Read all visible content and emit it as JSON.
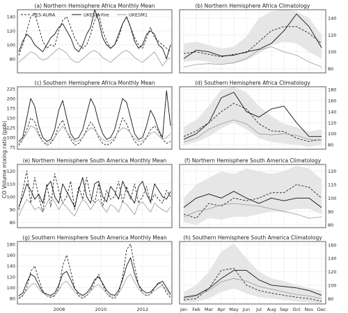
{
  "figure": {
    "ylabel": "CO Volume mixing ratio (ppb)",
    "legend": [
      {
        "label": "TES-AURA",
        "style": "dashed",
        "color": "#222222"
      },
      {
        "label": "UKESM-Fire",
        "style": "solid",
        "color": "#111111"
      },
      {
        "label": "UKESM1",
        "style": "solid",
        "color": "#999999"
      }
    ],
    "colors": {
      "tes": "#222222",
      "fire": "#111111",
      "ukesm1": "#999999",
      "band": "#e6e6e6",
      "grid": "#e8e8e8"
    }
  },
  "chart_data": [
    {
      "type": "line",
      "title": "(a) Northern Hemisphere Africa Monthly Mean",
      "x_labels": [
        "2008",
        "2010",
        "2012"
      ],
      "y_ticks": [
        80,
        100,
        120,
        140
      ],
      "ylim": [
        60,
        150
      ],
      "grid": true,
      "legend_placement": "top",
      "series": [
        {
          "name": "TES-AURA",
          "values": [
            85,
            100,
            120,
            140,
            145,
            125,
            105,
            95,
            100,
            98,
            120,
            135,
            140,
            125,
            110,
            100,
            95,
            100,
            115,
            135,
            145,
            120,
            105,
            95,
            100,
            110,
            130,
            140,
            125,
            110,
            100,
            95,
            110,
            125,
            110,
            105,
            100,
            95,
            90
          ]
        },
        {
          "name": "UKESM-Fire",
          "values": [
            90,
            105,
            115,
            110,
            100,
            95,
            90,
            100,
            110,
            115,
            125,
            130,
            120,
            110,
            95,
            90,
            100,
            115,
            125,
            150,
            135,
            110,
            100,
            95,
            100,
            115,
            130,
            140,
            125,
            105,
            95,
            100,
            115,
            120,
            115,
            100,
            95,
            80,
            100
          ]
        },
        {
          "name": "UKESM1",
          "values": [
            75,
            80,
            85,
            90,
            88,
            82,
            78,
            80,
            85,
            90,
            95,
            92,
            88,
            80,
            76,
            75,
            80,
            85,
            90,
            92,
            88,
            82,
            78,
            75,
            80,
            85,
            90,
            92,
            88,
            82,
            78,
            75,
            80,
            85,
            90,
            80,
            70,
            78,
            82
          ]
        }
      ]
    },
    {
      "type": "line",
      "title": "(b) Northern Hemisphere Africa Climatology",
      "x_labels": [
        "Jan",
        "Feb",
        "Mar",
        "Apr",
        "May",
        "Jun",
        "Jul",
        "Aug",
        "Sep",
        "Oct",
        "Nov",
        "Dec"
      ],
      "y_ticks": [
        80,
        100,
        120,
        140
      ],
      "ylim": [
        75,
        150
      ],
      "grid": true,
      "series": [
        {
          "name": "TES-AURA",
          "values": [
            98,
            100,
            97,
            94,
            97,
            99,
            112,
            125,
            130,
            130,
            122,
            110
          ]
        },
        {
          "name": "UKESM-Fire",
          "values": [
            92,
            102,
            100,
            95,
            96,
            100,
            103,
            110,
            125,
            145,
            130,
            105
          ]
        },
        {
          "name": "UKESM1",
          "values": [
            82,
            85,
            86,
            85,
            87,
            92,
            102,
            106,
            100,
            96,
            88,
            82
          ]
        }
      ],
      "band": {
        "lower": [
          88,
          90,
          88,
          85,
          86,
          90,
          98,
          108,
          112,
          110,
          100,
          92
        ],
        "upper": [
          110,
          112,
          108,
          104,
          106,
          118,
          140,
          148,
          150,
          148,
          140,
          120
        ]
      }
    },
    {
      "type": "line",
      "title": "(c) Southern Hemisphere Africa Monthly Mean",
      "x_labels": [
        "2008",
        "2010",
        "2012"
      ],
      "y_ticks": [
        75,
        100,
        125,
        150,
        175,
        200,
        225
      ],
      "ylim": [
        70,
        230
      ],
      "grid": true,
      "series": [
        {
          "name": "TES-AURA",
          "values": [
            80,
            95,
            120,
            150,
            140,
            110,
            90,
            80,
            85,
            100,
            130,
            145,
            115,
            95,
            80,
            85,
            100,
            120,
            140,
            125,
            100,
            85,
            80,
            85,
            95,
            120,
            150,
            135,
            110,
            90,
            80,
            85,
            100,
            120,
            130,
            115,
            95,
            85,
            90
          ]
        },
        {
          "name": "UKESM-Fire",
          "values": [
            90,
            100,
            150,
            200,
            180,
            130,
            100,
            90,
            95,
            120,
            170,
            195,
            150,
            110,
            95,
            100,
            120,
            160,
            200,
            180,
            140,
            110,
            95,
            100,
            120,
            160,
            200,
            190,
            150,
            110,
            95,
            100,
            130,
            170,
            150,
            120,
            100,
            220,
            130
          ]
        },
        {
          "name": "UKESM1",
          "values": [
            85,
            95,
            110,
            130,
            125,
            105,
            90,
            85,
            90,
            100,
            115,
            130,
            115,
            100,
            90,
            92,
            100,
            115,
            125,
            120,
            105,
            95,
            90,
            92,
            100,
            115,
            125,
            122,
            110,
            98,
            90,
            92,
            100,
            110,
            115,
            105,
            95,
            100,
            110
          ]
        }
      ]
    },
    {
      "type": "line",
      "title": "(d) Southern Hemisphere Africa Climatology",
      "x_labels": [
        "Jan",
        "Feb",
        "Mar",
        "Apr",
        "May",
        "Jun",
        "Jul",
        "Aug",
        "Sep",
        "Oct",
        "Nov",
        "Dec"
      ],
      "y_ticks": [
        80,
        100,
        120,
        140,
        160,
        180
      ],
      "ylim": [
        72,
        185
      ],
      "grid": true,
      "series": [
        {
          "name": "TES-AURA",
          "values": [
            95,
            105,
            120,
            140,
            155,
            145,
            118,
            105,
            104,
            92,
            86,
            90
          ]
        },
        {
          "name": "UKESM-Fire",
          "values": [
            90,
            100,
            120,
            165,
            175,
            140,
            130,
            145,
            150,
            120,
            95,
            95
          ]
        },
        {
          "name": "UKESM1",
          "values": [
            85,
            92,
            108,
            118,
            125,
            118,
            100,
            98,
            100,
            97,
            90,
            88
          ]
        }
      ],
      "band": {
        "lower": [
          80,
          85,
          95,
          110,
          120,
          108,
          92,
          85,
          82,
          80,
          76,
          80
        ],
        "upper": [
          112,
          125,
          150,
          180,
          185,
          175,
          150,
          132,
          118,
          112,
          104,
          108
        ]
      }
    },
    {
      "type": "line",
      "title": "(e) Northern Hemisphere South America Monthly Mean",
      "x_labels": [
        "2008",
        "2010",
        "2012"
      ],
      "y_ticks": [
        80,
        90,
        100,
        110,
        120
      ],
      "ylim": [
        76,
        125
      ],
      "grid": true,
      "series": [
        {
          "name": "TES-AURA",
          "values": [
            90,
            105,
            120,
            95,
            115,
            100,
            88,
            110,
            92,
            118,
            105,
            95,
            100,
            112,
            90,
            108,
            98,
            115,
            100,
            95,
            110,
            92,
            105,
            98,
            100,
            112,
            95,
            108,
            98,
            110,
            95,
            100,
            108,
            95,
            102,
            98,
            95,
            105,
            100
          ]
        },
        {
          "name": "UKESM-Fire",
          "values": [
            92,
            100,
            110,
            105,
            98,
            102,
            95,
            108,
            112,
            100,
            95,
            110,
            104,
            98,
            92,
            105,
            115,
            100,
            95,
            110,
            112,
            100,
            96,
            108,
            104,
            98,
            112,
            105,
            100,
            95,
            108,
            112,
            102,
            96,
            110,
            105,
            100,
            98,
            104
          ]
        },
        {
          "name": "UKESM1",
          "values": [
            85,
            92,
            98,
            95,
            90,
            92,
            88,
            95,
            100,
            96,
            90,
            95,
            92,
            88,
            85,
            92,
            98,
            95,
            90,
            95,
            98,
            92,
            88,
            94,
            92,
            88,
            96,
            94,
            90,
            86,
            94,
            96,
            92,
            88,
            95,
            92,
            90,
            88,
            92
          ]
        }
      ]
    },
    {
      "type": "line",
      "title": "(f) Northern Hemisphere South America Climatology",
      "x_labels": [
        "Jan",
        "Feb",
        "Mar",
        "Apr",
        "May",
        "Jun",
        "Jul",
        "Aug",
        "Sep",
        "Oct",
        "Nov",
        "Dec"
      ],
      "y_ticks": [
        80,
        90,
        100,
        110,
        120
      ],
      "ylim": [
        78,
        125
      ],
      "grid": true,
      "series": [
        {
          "name": "TES-AURA",
          "values": [
            88,
            85,
            96,
            94,
            100,
            98,
            100,
            104,
            104,
            110,
            108,
            100
          ]
        },
        {
          "name": "UKESM-Fire",
          "values": [
            93,
            100,
            103,
            100,
            105,
            100,
            96,
            100,
            98,
            100,
            100,
            93
          ]
        },
        {
          "name": "UKESM1",
          "values": [
            86,
            90,
            92,
            95,
            96,
            95,
            94,
            92,
            90,
            88,
            85,
            86
          ]
        }
      ],
      "band": {
        "lower": [
          82,
          80,
          85,
          84,
          86,
          86,
          88,
          90,
          90,
          92,
          92,
          88
        ],
        "upper": [
          100,
          110,
          115,
          120,
          118,
          122,
          120,
          118,
          120,
          124,
          122,
          114
        ]
      }
    },
    {
      "type": "line",
      "title": "(g) Southern Hemisphere South America Monthly Mean",
      "x_labels": [
        "2008",
        "2010",
        "2012"
      ],
      "y_ticks": [
        80,
        100,
        120,
        140,
        160,
        180
      ],
      "ylim": [
        70,
        185
      ],
      "grid": true,
      "series": [
        {
          "name": "TES-AURA",
          "values": [
            80,
            85,
            100,
            130,
            140,
            115,
            95,
            85,
            82,
            85,
            100,
            140,
            160,
            130,
            100,
            85,
            80,
            85,
            95,
            110,
            125,
            105,
            90,
            82,
            80,
            90,
            120,
            170,
            180,
            140,
            105,
            90,
            85,
            88,
            100,
            110,
            105,
            90,
            82
          ]
        },
        {
          "name": "UKESM-Fire",
          "values": [
            85,
            90,
            110,
            125,
            120,
            105,
            92,
            88,
            86,
            90,
            105,
            125,
            130,
            115,
            98,
            90,
            86,
            90,
            100,
            115,
            120,
            108,
            95,
            88,
            86,
            95,
            115,
            140,
            155,
            125,
            105,
            95,
            90,
            92,
            100,
            108,
            112,
            100,
            88
          ]
        },
        {
          "name": "UKESM1",
          "values": [
            82,
            86,
            95,
            105,
            108,
            98,
            90,
            85,
            84,
            86,
            95,
            108,
            112,
            102,
            92,
            86,
            84,
            86,
            94,
            102,
            106,
            98,
            90,
            85,
            84,
            90,
            102,
            118,
            125,
            110,
            98,
            90,
            86,
            88,
            95,
            100,
            104,
            96,
            86
          ]
        }
      ]
    },
    {
      "type": "line",
      "title": "(h) Southern Hemisphere South America Climatology",
      "x_labels": [
        "Jan",
        "Feb",
        "Mar",
        "Apr",
        "May",
        "Jun",
        "Jul",
        "Aug",
        "Sep",
        "Oct",
        "Nov",
        "Dec"
      ],
      "y_ticks": [
        80,
        100,
        120,
        140,
        160
      ],
      "ylim": [
        72,
        165
      ],
      "grid": true,
      "series": [
        {
          "name": "TES-AURA",
          "values": [
            78,
            80,
            95,
            122,
            125,
            100,
            92,
            88,
            85,
            82,
            80,
            76
          ]
        },
        {
          "name": "UKESM-Fire",
          "values": [
            82,
            85,
            95,
            110,
            122,
            122,
            108,
            100,
            98,
            96,
            92,
            85
          ]
        },
        {
          "name": "UKESM1",
          "values": [
            80,
            84,
            92,
            105,
            110,
            106,
            98,
            94,
            90,
            86,
            84,
            80
          ]
        }
      ],
      "band": {
        "lower": [
          74,
          75,
          80,
          90,
          95,
          88,
          82,
          80,
          78,
          76,
          74,
          72
        ],
        "upper": [
          90,
          100,
          120,
          150,
          162,
          140,
          120,
          110,
          106,
          100,
          96,
          92
        ]
      }
    }
  ]
}
